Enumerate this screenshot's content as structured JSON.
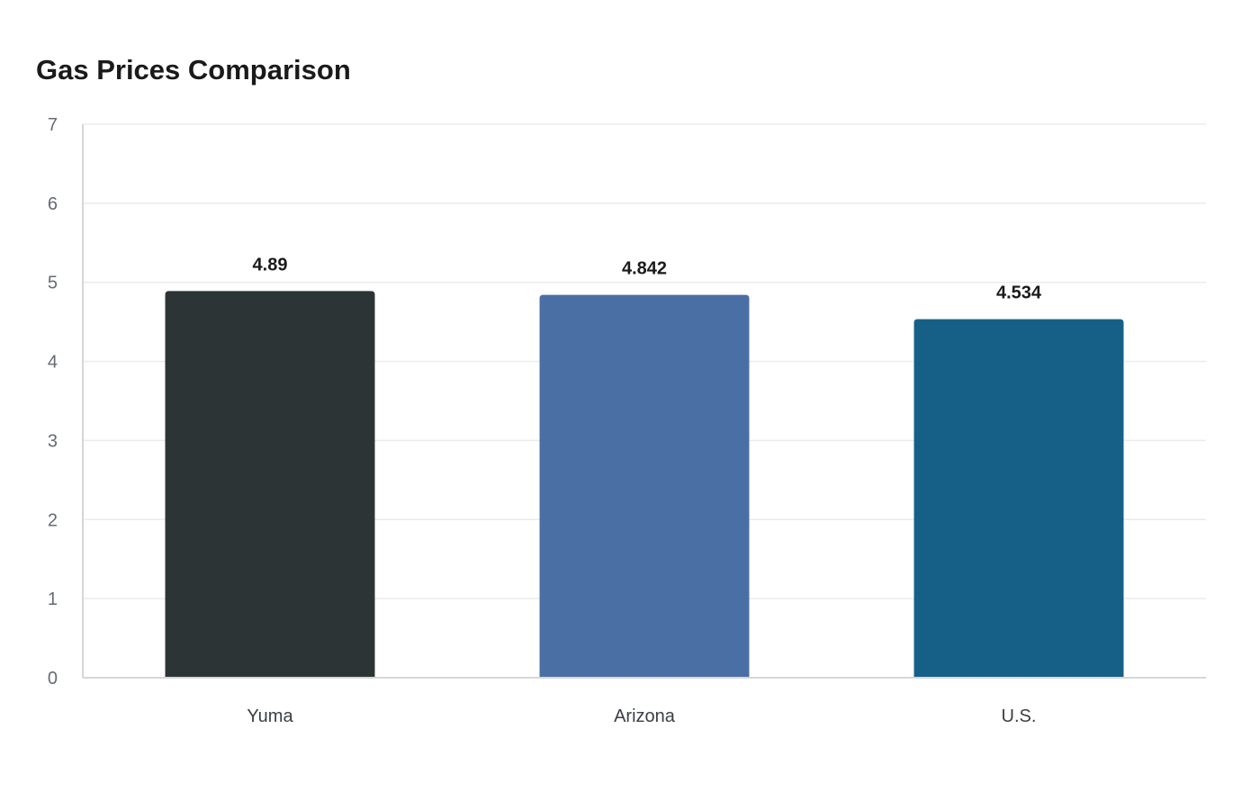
{
  "chart_data": {
    "type": "bar",
    "title": "Gas Prices Comparison",
    "xlabel": "",
    "ylabel": "",
    "categories": [
      "Yuma",
      "Arizona",
      "U.S."
    ],
    "values": [
      4.89,
      4.842,
      4.534
    ],
    "value_labels": [
      "4.89",
      "4.842",
      "4.534"
    ],
    "colors": [
      "#2d3436",
      "#4a6fa5",
      "#166088"
    ],
    "ylim": [
      0,
      7
    ],
    "yticks": [
      0,
      1,
      2,
      3,
      4,
      5,
      6,
      7
    ],
    "grid": true,
    "legend": "none"
  }
}
